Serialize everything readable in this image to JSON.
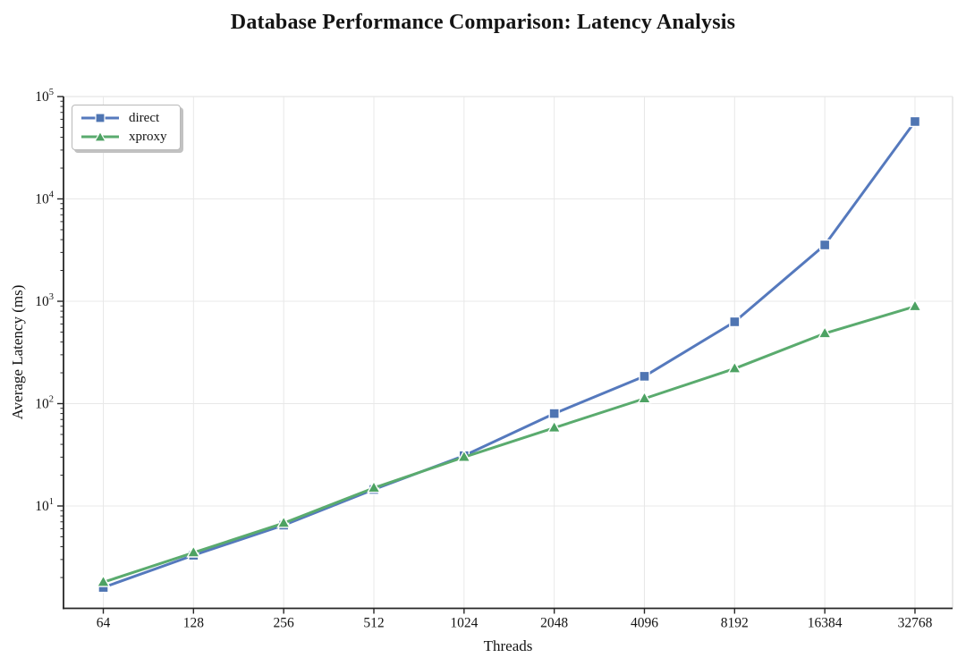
{
  "chart_data": {
    "type": "line",
    "title": "Database Performance Comparison: Latency Analysis",
    "xlabel": "Threads",
    "ylabel": "Average Latency (ms)",
    "x_scale": "log2",
    "y_scale": "log10",
    "grid": true,
    "legend_position": "upper left",
    "categories": [
      64,
      128,
      256,
      512,
      1024,
      2048,
      4096,
      8192,
      16384,
      32768
    ],
    "x_tick_labels": [
      "64",
      "128",
      "256",
      "512",
      "1024",
      "2048",
      "4096",
      "8192",
      "16384",
      "32768"
    ],
    "y_tick_exponents": [
      1,
      2,
      3,
      4,
      5
    ],
    "ylim": [
      1,
      100000
    ],
    "series": [
      {
        "name": "direct",
        "marker": "square",
        "color": "#5579bd",
        "marker_color": "#4f75b2",
        "values": [
          1.6,
          3.3,
          6.5,
          14.5,
          31,
          80,
          185,
          630,
          3550,
          57000
        ]
      },
      {
        "name": "xproxy",
        "marker": "triangle",
        "color": "#5aab6e",
        "marker_color": "#4da263",
        "values": [
          1.8,
          3.5,
          6.8,
          15,
          30,
          58,
          112,
          220,
          485,
          890
        ]
      }
    ],
    "colors": {
      "grid": "#e8e8e8",
      "spine_dark": "#262626",
      "spine_light": "#dcdcdc",
      "tick_label": "#141414"
    }
  }
}
